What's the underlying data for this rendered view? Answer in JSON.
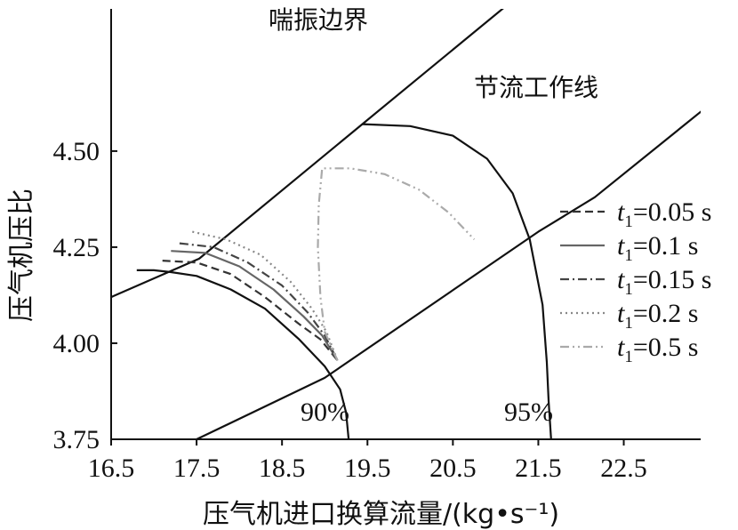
{
  "chart_data": {
    "type": "line",
    "xlabel": "压气机进口换算流量/(kg•s⁻¹)",
    "ylabel": "压气机压比",
    "xlim": [
      16.5,
      23.4
    ],
    "ylim": [
      3.75,
      4.87
    ],
    "x_ticks": [
      "16.5",
      "17.5",
      "18.5",
      "19.5",
      "20.5",
      "21.5",
      "22.5"
    ],
    "y_ticks": [
      "3.75",
      "4.00",
      "4.25",
      "4.50"
    ],
    "annotations": {
      "surge": "喘振边界",
      "throttle": "节流工作线",
      "speed90": "90%",
      "speed95": "95%"
    },
    "legend_position": "right",
    "series": [
      {
        "name": "t1=0.05 s",
        "label_main": "t",
        "label_sub": "1",
        "label_rest": "=0.05 s",
        "style": "dashed",
        "color": "#333333",
        "x": [
          17.1,
          17.5,
          17.9,
          18.3,
          18.7,
          18.95,
          19.15
        ],
        "y": [
          4.215,
          4.21,
          4.18,
          4.12,
          4.05,
          4.01,
          3.955
        ]
      },
      {
        "name": "t1=0.1 s",
        "label_main": "t",
        "label_sub": "1",
        "label_rest": "=0.1 s",
        "style": "solid",
        "color": "#666666",
        "x": [
          17.2,
          17.6,
          18.0,
          18.4,
          18.75,
          18.97,
          19.15
        ],
        "y": [
          4.24,
          4.235,
          4.2,
          4.14,
          4.07,
          4.02,
          3.955
        ]
      },
      {
        "name": "t1=0.15 s",
        "label_main": "t",
        "label_sub": "1",
        "label_rest": "=0.15 s",
        "style": "dashdot",
        "color": "#444444",
        "x": [
          17.3,
          17.7,
          18.1,
          18.5,
          18.8,
          19.0,
          19.15
        ],
        "y": [
          4.26,
          4.25,
          4.21,
          4.15,
          4.08,
          4.02,
          3.955
        ]
      },
      {
        "name": "t1=0.2 s",
        "label_main": "t",
        "label_sub": "1",
        "label_rest": "=0.2 s",
        "style": "dotted",
        "color": "#888888",
        "x": [
          17.45,
          17.85,
          18.25,
          18.6,
          18.85,
          19.02,
          19.15
        ],
        "y": [
          4.29,
          4.27,
          4.23,
          4.16,
          4.09,
          4.03,
          3.955
        ]
      },
      {
        "name": "t1=0.5 s",
        "label_main": "t",
        "label_sub": "1",
        "label_rest": "=0.5 s",
        "style": "dashdotdot",
        "color": "#aaaaaa",
        "x": [
          19.15,
          19.0,
          18.95,
          18.92,
          18.93,
          18.97,
          19.3,
          19.7,
          20.1,
          20.45,
          20.75
        ],
        "y": [
          3.955,
          4.03,
          4.12,
          4.25,
          4.36,
          4.455,
          4.455,
          4.44,
          4.4,
          4.34,
          4.27
        ]
      }
    ],
    "reference_lines": [
      {
        "id": "surge-boundary",
        "x": [
          16.5,
          17.53,
          19.44,
          21.08,
          23.2
        ],
        "y": [
          4.12,
          4.22,
          4.57,
          4.87,
          5.26
        ]
      },
      {
        "id": "throttle-line",
        "x": [
          17.5,
          19.0,
          21.5,
          22.16,
          23.5
        ],
        "y": [
          3.75,
          3.91,
          4.29,
          4.38,
          4.62
        ]
      },
      {
        "id": "speed-90",
        "x": [
          16.8,
          17.0,
          17.2,
          17.5,
          17.9,
          18.3,
          18.7,
          19.0,
          19.18,
          19.25,
          19.28
        ],
        "y": [
          4.19,
          4.19,
          4.185,
          4.175,
          4.14,
          4.09,
          4.01,
          3.94,
          3.88,
          3.82,
          3.75
        ]
      },
      {
        "id": "speed-95",
        "x": [
          19.44,
          20.0,
          20.5,
          20.9,
          21.2,
          21.4,
          21.55,
          21.6,
          21.62,
          21.65
        ],
        "y": [
          4.57,
          4.565,
          4.54,
          4.48,
          4.39,
          4.27,
          4.1,
          3.95,
          3.85,
          3.75
        ]
      }
    ]
  }
}
